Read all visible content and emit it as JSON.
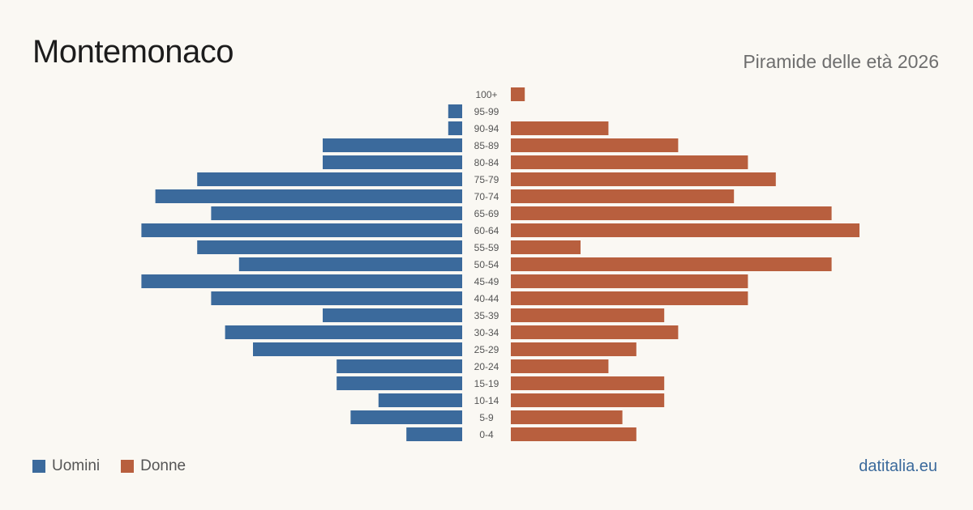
{
  "header": {
    "title": "Montemonaco",
    "subtitle": "Piramide delle età 2026"
  },
  "legend": {
    "men_label": "Uomini",
    "women_label": "Donne"
  },
  "footer": {
    "source": "datitalia.eu"
  },
  "colors": {
    "men": "#3b6a9c",
    "women": "#b85f3e",
    "background": "#faf8f3",
    "label_text": "#555555"
  },
  "chart_data": {
    "type": "bar",
    "orientation": "horizontal-pyramid",
    "categories": [
      "100+",
      "95-99",
      "90-94",
      "85-89",
      "80-84",
      "75-79",
      "70-74",
      "65-69",
      "60-64",
      "55-59",
      "50-54",
      "45-49",
      "40-44",
      "35-39",
      "30-34",
      "25-29",
      "20-24",
      "15-19",
      "10-14",
      "5-9",
      "0-4"
    ],
    "series": [
      {
        "name": "Uomini",
        "values": [
          0,
          1,
          1,
          10,
          10,
          19,
          22,
          18,
          23,
          19,
          16,
          23,
          18,
          10,
          17,
          15,
          9,
          9,
          6,
          8,
          4
        ]
      },
      {
        "name": "Donne",
        "values": [
          1,
          0,
          7,
          12,
          17,
          19,
          16,
          23,
          25,
          5,
          23,
          17,
          17,
          11,
          12,
          9,
          7,
          11,
          11,
          8,
          9
        ]
      }
    ],
    "xlim": [
      0,
      26
    ],
    "grid": false,
    "legend_position": "bottom-left"
  }
}
